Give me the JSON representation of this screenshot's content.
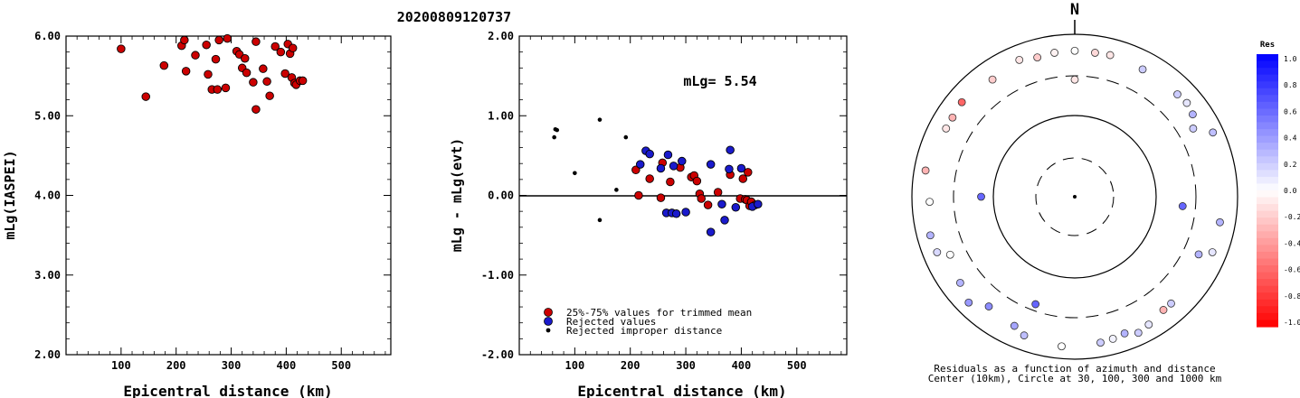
{
  "title": "20200809120737",
  "chart_data": [
    {
      "type": "scatter",
      "xlabel": "Epicentral distance (km)",
      "ylabel": "mLg(IASPEI)",
      "xlim": [
        0,
        590
      ],
      "ylim": [
        2.0,
        6.0
      ],
      "x_ticks": [
        "100",
        "200",
        "300",
        "400",
        "500"
      ],
      "y_ticks": [
        "2.00",
        "3.00",
        "4.00",
        "5.00",
        "6.00"
      ],
      "points": [
        [
          100,
          5.84
        ],
        [
          145,
          5.24
        ],
        [
          178,
          5.63
        ],
        [
          210,
          5.88
        ],
        [
          215,
          5.95
        ],
        [
          218,
          5.56
        ],
        [
          235,
          5.76
        ],
        [
          255,
          5.89
        ],
        [
          258,
          5.52
        ],
        [
          265,
          5.33
        ],
        [
          272,
          5.71
        ],
        [
          275,
          5.33
        ],
        [
          278,
          5.95
        ],
        [
          290,
          5.35
        ],
        [
          293,
          5.97
        ],
        [
          310,
          5.81
        ],
        [
          315,
          5.77
        ],
        [
          320,
          5.6
        ],
        [
          325,
          5.72
        ],
        [
          328,
          5.54
        ],
        [
          340,
          5.42
        ],
        [
          345,
          5.93
        ],
        [
          345,
          5.08
        ],
        [
          358,
          5.59
        ],
        [
          365,
          5.43
        ],
        [
          370,
          5.25
        ],
        [
          380,
          5.87
        ],
        [
          390,
          5.8
        ],
        [
          398,
          5.53
        ],
        [
          403,
          5.9
        ],
        [
          407,
          5.78
        ],
        [
          410,
          5.48
        ],
        [
          412,
          5.85
        ],
        [
          415,
          5.41
        ],
        [
          418,
          5.39
        ],
        [
          425,
          5.44
        ],
        [
          430,
          5.44
        ]
      ]
    },
    {
      "type": "scatter",
      "xlabel": "Epicentral distance (km)",
      "ylabel": "mLg - mLg(evt)",
      "xlim": [
        0,
        590
      ],
      "ylim": [
        -2.0,
        2.0
      ],
      "x_ticks": [
        "100",
        "200",
        "300",
        "400",
        "500"
      ],
      "y_ticks": [
        "-2.00",
        "-1.00",
        "0.00",
        "1.00",
        "2.00"
      ],
      "annotation": "mLg= 5.54",
      "legend": [
        "25%-75% values for trimmed mean",
        "Rejected values",
        "Rejected improper distance"
      ],
      "series": [
        {
          "name": "25%-75% values for trimmed mean",
          "color": "#cc0000",
          "points": [
            [
              210,
              0.32
            ],
            [
              215,
              0.0
            ],
            [
              235,
              0.21
            ],
            [
              255,
              -0.03
            ],
            [
              258,
              0.41
            ],
            [
              272,
              0.17
            ],
            [
              290,
              0.35
            ],
            [
              310,
              0.23
            ],
            [
              315,
              0.25
            ],
            [
              320,
              0.18
            ],
            [
              325,
              0.02
            ],
            [
              328,
              -0.04
            ],
            [
              340,
              -0.12
            ],
            [
              358,
              0.04
            ],
            [
              380,
              0.26
            ],
            [
              398,
              -0.04
            ],
            [
              403,
              0.21
            ],
            [
              407,
              -0.05
            ],
            [
              410,
              -0.06
            ],
            [
              412,
              0.29
            ],
            [
              415,
              -0.13
            ],
            [
              418,
              -0.08
            ],
            [
              425,
              -0.12
            ]
          ]
        },
        {
          "name": "Rejected values",
          "color": "#1a1acc",
          "points": [
            [
              218,
              0.39
            ],
            [
              228,
              0.56
            ],
            [
              235,
              0.52
            ],
            [
              255,
              0.34
            ],
            [
              265,
              -0.22
            ],
            [
              268,
              0.51
            ],
            [
              275,
              -0.22
            ],
            [
              278,
              0.37
            ],
            [
              283,
              -0.23
            ],
            [
              293,
              0.43
            ],
            [
              300,
              -0.21
            ],
            [
              345,
              -0.46
            ],
            [
              345,
              0.39
            ],
            [
              365,
              -0.11
            ],
            [
              370,
              -0.31
            ],
            [
              378,
              0.33
            ],
            [
              380,
              0.57
            ],
            [
              390,
              -0.15
            ],
            [
              400,
              0.34
            ],
            [
              420,
              -0.14
            ],
            [
              430,
              -0.11
            ]
          ]
        },
        {
          "name": "Rejected improper distance",
          "color": "#000000",
          "points": [
            [
              63,
              0.73
            ],
            [
              65,
              0.83
            ],
            [
              68,
              0.82
            ],
            [
              100,
              0.28
            ],
            [
              145,
              0.95
            ],
            [
              145,
              -0.31
            ],
            [
              175,
              0.07
            ],
            [
              192,
              0.73
            ]
          ]
        }
      ]
    },
    {
      "type": "scatter",
      "title": "N",
      "caption": [
        "Residuals as a function of azimuth and distance",
        "Center (10km), Circle at 30, 100, 300 and 1000 km"
      ],
      "colorbar": {
        "title": "Res",
        "labels": [
          "1.0",
          "0.8",
          "0.6",
          "0.4",
          "0.2",
          "0.0",
          "-0.2",
          "-0.4",
          "-0.6",
          "-0.8",
          "-1.0"
        ]
      },
      "points_azimuth_distance_residual": [
        [
          338,
          650,
          -0.1
        ],
        [
          345,
          590,
          -0.2
        ],
        [
          352,
          610,
          -0.05
        ],
        [
          0,
          620,
          0.0
        ],
        [
          8,
          610,
          -0.15
        ],
        [
          14,
          620,
          -0.1
        ],
        [
          325,
          570,
          -0.2
        ],
        [
          45,
          600,
          0.2
        ],
        [
          50,
          620,
          0.1
        ],
        [
          60,
          470,
          0.2
        ],
        [
          310,
          640,
          -0.6
        ],
        [
          303,
          610,
          -0.3
        ],
        [
          298,
          610,
          -0.1
        ],
        [
          55,
          580,
          0.3
        ],
        [
          65,
          740,
          0.25
        ],
        [
          280,
          720,
          -0.3
        ],
        [
          268,
          600,
          0.0
        ],
        [
          270,
          140,
          0.6
        ],
        [
          95,
          210,
          0.6
        ],
        [
          100,
          640,
          0.3
        ],
        [
          255,
          680,
          0.3
        ],
        [
          245,
          480,
          0.0
        ],
        [
          233,
          570,
          0.3
        ],
        [
          200,
          250,
          0.6
        ],
        [
          225,
          690,
          0.4
        ],
        [
          218,
          510,
          0.45
        ],
        [
          205,
          560,
          0.35
        ],
        [
          200,
          650,
          0.25
        ],
        [
          185,
          700,
          0.0
        ],
        [
          160,
          610,
          0.3
        ],
        [
          155,
          700,
          0.2
        ],
        [
          150,
          650,
          0.1
        ],
        [
          165,
          640,
          0.05
        ],
        [
          142,
          580,
          -0.3
        ],
        [
          138,
          580,
          0.2
        ],
        [
          115,
          470,
          0.3
        ],
        [
          112,
          660,
          0.1
        ],
        [
          248,
          660,
          0.15
        ],
        [
          0,
          270,
          -0.1
        ],
        [
          28,
          590,
          0.2
        ],
        [
          170,
          660,
          0.2
        ]
      ]
    }
  ]
}
